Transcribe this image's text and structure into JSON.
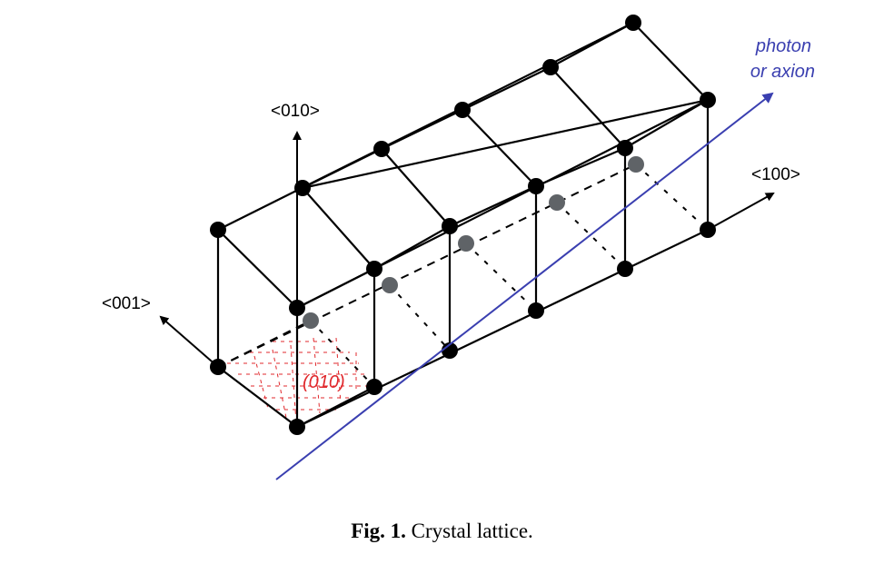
{
  "colors": {
    "lattice": "#000000",
    "atom": "#000000",
    "back_atom": "#5f6367",
    "beam": "#3a3fb0",
    "plane": "#e0282c"
  },
  "axes": {
    "a010": "<010>",
    "a001": "<001>",
    "a100": "<100>"
  },
  "beam": {
    "line1": "photon",
    "line2": "or axion"
  },
  "plane": {
    "label": "(010)"
  },
  "caption": {
    "prefix": "Fig. 1.",
    "text": " Crystal lattice."
  }
}
